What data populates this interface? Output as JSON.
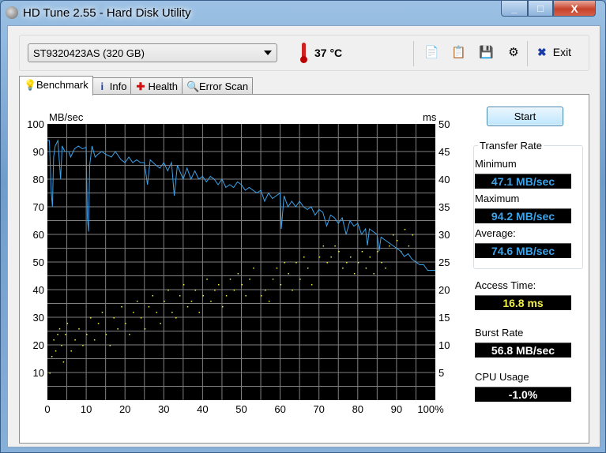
{
  "window": {
    "title": "HD Tune 2.55 - Hard Disk Utility",
    "minimize": "_",
    "maximize": "□",
    "close": "X"
  },
  "toolbar": {
    "drive": "ST9320423AS (320 GB)",
    "temperature": "37 °C",
    "exit_label": "Exit",
    "icons": [
      "copy-info-icon",
      "copy-screenshot-icon",
      "save-icon",
      "options-icon"
    ]
  },
  "tabs": [
    {
      "label": "Benchmark",
      "icon": "bulb-icon",
      "active": true
    },
    {
      "label": "Info",
      "icon": "info-icon"
    },
    {
      "label": "Health",
      "icon": "health-cross-icon"
    },
    {
      "label": "Error Scan",
      "icon": "magnifier-icon"
    }
  ],
  "side": {
    "start_label": "Start",
    "transfer_rate_title": "Transfer Rate",
    "minimum_label": "Minimum",
    "minimum": "47.1 MB/sec",
    "maximum_label": "Maximum",
    "maximum": "94.2 MB/sec",
    "average_label": "Average:",
    "average": "74.6 MB/sec",
    "access_label": "Access Time:",
    "access": "16.8 ms",
    "burst_label": "Burst Rate",
    "burst": "56.8 MB/sec",
    "cpu_label": "CPU Usage",
    "cpu": "-1.0%",
    "colors": {
      "transfer": "#3ba3ea",
      "access": "#f0f040",
      "burst": "#ffffff"
    }
  },
  "chart_data": {
    "type": "line",
    "ylabel_left": "MB/sec",
    "ylabel_right": "ms",
    "xlim": [
      0,
      100
    ],
    "ylim_left": [
      0,
      100
    ],
    "ylim_right": [
      0,
      50
    ],
    "x_ticks": [
      "0",
      "10",
      "20",
      "30",
      "40",
      "50",
      "60",
      "70",
      "80",
      "90",
      "100%"
    ],
    "y_ticks_left": [
      "10",
      "20",
      "30",
      "40",
      "50",
      "60",
      "70",
      "80",
      "90",
      "100"
    ],
    "y_ticks_right": [
      "5",
      "10",
      "15",
      "20",
      "25",
      "30",
      "35",
      "40",
      "45",
      "50"
    ],
    "grid": true,
    "series": [
      {
        "kind": "line",
        "color": "#3ba3ea",
        "points": [
          [
            0,
            94
          ],
          [
            0.5,
            94
          ],
          [
            1,
            75
          ],
          [
            1.3,
            70
          ],
          [
            1.6,
            88
          ],
          [
            2,
            92
          ],
          [
            2.7,
            94
          ],
          [
            3.4,
            80
          ],
          [
            3.8,
            92
          ],
          [
            4.5,
            90
          ],
          [
            5.5,
            90
          ],
          [
            6,
            88
          ],
          [
            7,
            91
          ],
          [
            8,
            92
          ],
          [
            9,
            91
          ],
          [
            10,
            91.5
          ],
          [
            10.3,
            66
          ],
          [
            10.6,
            61
          ],
          [
            10.9,
            85
          ],
          [
            11.5,
            92
          ],
          [
            12.3,
            88
          ],
          [
            13,
            89
          ],
          [
            14,
            90
          ],
          [
            15,
            89
          ],
          [
            16.5,
            88
          ],
          [
            17.5,
            90
          ],
          [
            19,
            87
          ],
          [
            20,
            86
          ],
          [
            21,
            88
          ],
          [
            22,
            86
          ],
          [
            23,
            87
          ],
          [
            24,
            86
          ],
          [
            25,
            86
          ],
          [
            25.8,
            78
          ],
          [
            26.5,
            87
          ],
          [
            28,
            85
          ],
          [
            29,
            84
          ],
          [
            30,
            86
          ],
          [
            31,
            83
          ],
          [
            32,
            86
          ],
          [
            32.7,
            74
          ],
          [
            33.5,
            85
          ],
          [
            35,
            80
          ],
          [
            36,
            84
          ],
          [
            37,
            80
          ],
          [
            38,
            83
          ],
          [
            39,
            80
          ],
          [
            40,
            81
          ],
          [
            41,
            79
          ],
          [
            42,
            81
          ],
          [
            43,
            80
          ],
          [
            44,
            78
          ],
          [
            45,
            80
          ],
          [
            46,
            77
          ],
          [
            47,
            78
          ],
          [
            48,
            77
          ],
          [
            49,
            79
          ],
          [
            50,
            78
          ],
          [
            51,
            76
          ],
          [
            52,
            77
          ],
          [
            54,
            75
          ],
          [
            55,
            76
          ],
          [
            56,
            72
          ],
          [
            57,
            75
          ],
          [
            58,
            73
          ],
          [
            59,
            74
          ],
          [
            60,
            75
          ],
          [
            60.3,
            62
          ],
          [
            61,
            74
          ],
          [
            62,
            70
          ],
          [
            63,
            72
          ],
          [
            64,
            70
          ],
          [
            65,
            72
          ],
          [
            66,
            70
          ],
          [
            67,
            69
          ],
          [
            68,
            70
          ],
          [
            69,
            67
          ],
          [
            70,
            69
          ],
          [
            71,
            68
          ],
          [
            72,
            63
          ],
          [
            73,
            67
          ],
          [
            74,
            66
          ],
          [
            75,
            64
          ],
          [
            76,
            66
          ],
          [
            77,
            60
          ],
          [
            78,
            65
          ],
          [
            79,
            63
          ],
          [
            80,
            64
          ],
          [
            81,
            60
          ],
          [
            82,
            62
          ],
          [
            82.5,
            56
          ],
          [
            83,
            62
          ],
          [
            84,
            61
          ],
          [
            85,
            60
          ],
          [
            85.5,
            54
          ],
          [
            86,
            59
          ],
          [
            87,
            58
          ],
          [
            88,
            57
          ],
          [
            89,
            56
          ],
          [
            90,
            55
          ],
          [
            91,
            54
          ],
          [
            92,
            52
          ],
          [
            93,
            53
          ],
          [
            94,
            51
          ],
          [
            95,
            50
          ],
          [
            96,
            49
          ],
          [
            97,
            49
          ],
          [
            98,
            47
          ],
          [
            100,
            47
          ]
        ]
      },
      {
        "kind": "scatter",
        "axis": "right",
        "color": "#f0f040",
        "points": [
          [
            0.5,
            5
          ],
          [
            1,
            8
          ],
          [
            1.5,
            11
          ],
          [
            2,
            9
          ],
          [
            2.5,
            12
          ],
          [
            3,
            13
          ],
          [
            3.5,
            10
          ],
          [
            4,
            7
          ],
          [
            4.5,
            12
          ],
          [
            5,
            14
          ],
          [
            6,
            9
          ],
          [
            7,
            11
          ],
          [
            8,
            13
          ],
          [
            9,
            10
          ],
          [
            10,
            12
          ],
          [
            11,
            15
          ],
          [
            12,
            11
          ],
          [
            13,
            14
          ],
          [
            14,
            16
          ],
          [
            15,
            12
          ],
          [
            16,
            10
          ],
          [
            17,
            15
          ],
          [
            18,
            13
          ],
          [
            19,
            17
          ],
          [
            20,
            14
          ],
          [
            21,
            12
          ],
          [
            22,
            16
          ],
          [
            23,
            18
          ],
          [
            24,
            15
          ],
          [
            25,
            13
          ],
          [
            26,
            17
          ],
          [
            27,
            19
          ],
          [
            28,
            16
          ],
          [
            29,
            14
          ],
          [
            30,
            18
          ],
          [
            31,
            20
          ],
          [
            32,
            16
          ],
          [
            33,
            15
          ],
          [
            34,
            19
          ],
          [
            35,
            21
          ],
          [
            36,
            17
          ],
          [
            37,
            18
          ],
          [
            38,
            20
          ],
          [
            39,
            16
          ],
          [
            40,
            19
          ],
          [
            41,
            22
          ],
          [
            42,
            18
          ],
          [
            43,
            20
          ],
          [
            44,
            21
          ],
          [
            45,
            17
          ],
          [
            46,
            19
          ],
          [
            47,
            22
          ],
          [
            48,
            20
          ],
          [
            49,
            23
          ],
          [
            50,
            21
          ],
          [
            51,
            19
          ],
          [
            52,
            22
          ],
          [
            53,
            24
          ],
          [
            55,
            19
          ],
          [
            56,
            20
          ],
          [
            57,
            18
          ],
          [
            58,
            22
          ],
          [
            59,
            24
          ],
          [
            60,
            21
          ],
          [
            61,
            25
          ],
          [
            62,
            23
          ],
          [
            63,
            20
          ],
          [
            64,
            25
          ],
          [
            65,
            22
          ],
          [
            66,
            26
          ],
          [
            67,
            24
          ],
          [
            68,
            21
          ],
          [
            70,
            26
          ],
          [
            71,
            28
          ],
          [
            72,
            25
          ],
          [
            73,
            26
          ],
          [
            74,
            28
          ],
          [
            75,
            27
          ],
          [
            76,
            24
          ],
          [
            77,
            25
          ],
          [
            78,
            26
          ],
          [
            79,
            23
          ],
          [
            80,
            25
          ],
          [
            81,
            27
          ],
          [
            82,
            24
          ],
          [
            83,
            26
          ],
          [
            84,
            23
          ],
          [
            85,
            27
          ],
          [
            86,
            25
          ],
          [
            87,
            24
          ],
          [
            88,
            28
          ],
          [
            89,
            30
          ],
          [
            90,
            29
          ],
          [
            91,
            27
          ],
          [
            92,
            31
          ],
          [
            93,
            28
          ],
          [
            94,
            30
          ]
        ]
      }
    ]
  }
}
